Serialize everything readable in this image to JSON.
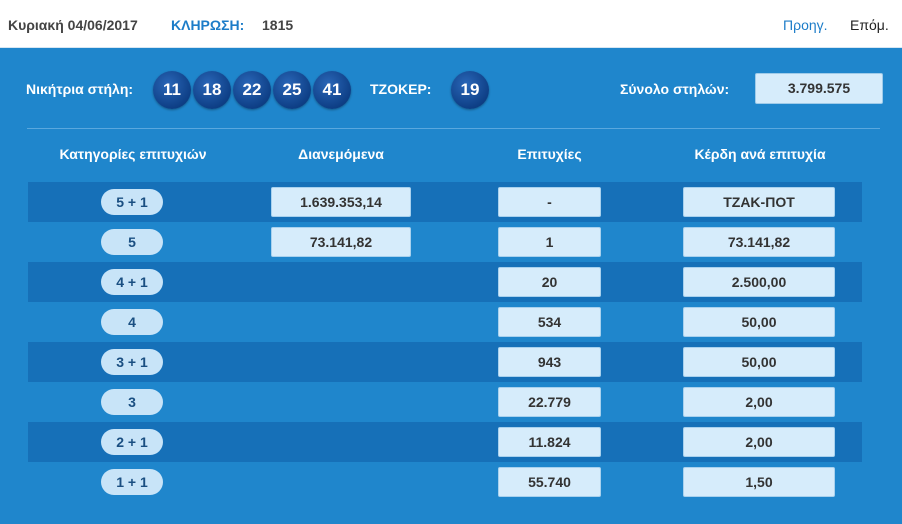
{
  "header": {
    "date": "Κυριακή 04/06/2017",
    "draw_label": "ΚΛΗΡΩΣΗ:",
    "draw_number": "1815",
    "prev_label": "Προηγ.",
    "next_label": "Επόμ."
  },
  "results": {
    "winning_label": "Νικήτρια στήλη:",
    "numbers": [
      "11",
      "18",
      "22",
      "25",
      "41"
    ],
    "joker_label": "ΤΖΟΚΕΡ:",
    "joker": "19",
    "total_label": "Σύνολο στηλών:",
    "total_value": "3.799.575"
  },
  "table": {
    "headers": [
      "Κατηγορίες επιτυχιών",
      "Διανεμόμενα",
      "Επιτυχίες",
      "Κέρδη ανά επιτυχία"
    ],
    "rows": [
      {
        "category": "5 + 1",
        "distributed": "1.639.353,14",
        "winners": "-",
        "prize": "ΤΖΑΚ-ΠΟΤ"
      },
      {
        "category": "5",
        "distributed": "73.141,82",
        "winners": "1",
        "prize": "73.141,82"
      },
      {
        "category": "4 + 1",
        "distributed": "",
        "winners": "20",
        "prize": "2.500,00"
      },
      {
        "category": "4",
        "distributed": "",
        "winners": "534",
        "prize": "50,00"
      },
      {
        "category": "3 + 1",
        "distributed": "",
        "winners": "943",
        "prize": "50,00"
      },
      {
        "category": "3",
        "distributed": "",
        "winners": "22.779",
        "prize": "2,00"
      },
      {
        "category": "2 + 1",
        "distributed": "",
        "winners": "11.824",
        "prize": "2,00"
      },
      {
        "category": "1 + 1",
        "distributed": "",
        "winners": "55.740",
        "prize": "1,50"
      }
    ]
  },
  "colors": {
    "background": "#1f86cc",
    "row_dark": "#1670b8",
    "ball": "#0e3f86",
    "box": "#d6ecfb",
    "link": "#1c7cc8"
  }
}
